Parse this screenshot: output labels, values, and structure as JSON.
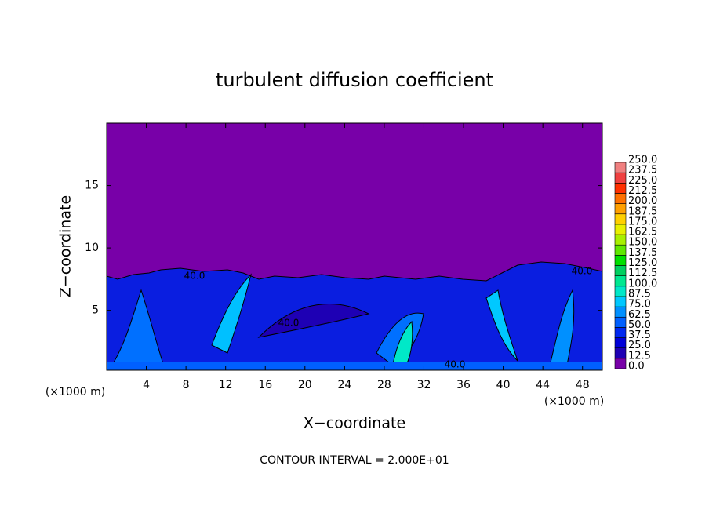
{
  "chart_data": {
    "type": "contour",
    "title": "turbulent diffusion coefficient",
    "x_label": "X−coordinate",
    "y_label": "Z−coordinate",
    "x_unit_label": "(×1000 m)",
    "y_unit_label": "(×1000 m)",
    "footer": "CONTOUR INTERVAL = 2.000E+01",
    "contour_labels": [
      "40.0",
      "40.0",
      "40.0",
      "40.0"
    ],
    "xlim": [
      0,
      50
    ],
    "xticks": [
      4,
      8,
      12,
      16,
      20,
      24,
      28,
      32,
      36,
      40,
      44,
      48
    ],
    "ylim": [
      0.2,
      20
    ],
    "yticks": [
      5,
      10,
      15
    ],
    "colorbar": {
      "levels": [
        {
          "value": 0,
          "label": "0.0"
        },
        {
          "value": 12.5,
          "label": "12.5"
        },
        {
          "value": 25,
          "label": "25.0"
        },
        {
          "value": 37.5,
          "label": "37.5"
        },
        {
          "value": 50,
          "label": "50.0"
        },
        {
          "value": 62.5,
          "label": "62.5"
        },
        {
          "value": 75,
          "label": "75.0"
        },
        {
          "value": 87.5,
          "label": "87.5"
        },
        {
          "value": 100,
          "label": "100.0"
        },
        {
          "value": 112.5,
          "label": "112.5"
        },
        {
          "value": 125,
          "label": "125.0"
        },
        {
          "value": 137.5,
          "label": "137.5"
        },
        {
          "value": 150,
          "label": "150.0"
        },
        {
          "value": 162.5,
          "label": "162.5"
        },
        {
          "value": 175,
          "label": "175.0"
        },
        {
          "value": 187.5,
          "label": "187.5"
        },
        {
          "value": 200,
          "label": "200.0"
        },
        {
          "value": 212.5,
          "label": "212.5"
        },
        {
          "value": 225,
          "label": "225.0"
        },
        {
          "value": 237.5,
          "label": "237.5"
        },
        {
          "value": 250,
          "label": "250.0"
        }
      ],
      "colors": [
        "#7800a8",
        "#1e00b4",
        "#0000d8",
        "#0028f0",
        "#0060ff",
        "#0090ff",
        "#00c8ff",
        "#00e8c8",
        "#00e890",
        "#00d060",
        "#00e000",
        "#60e800",
        "#a8f000",
        "#e8f000",
        "#ffd000",
        "#ffa000",
        "#ff7000",
        "#ff3000",
        "#f04040",
        "#f08080"
      ]
    }
  }
}
